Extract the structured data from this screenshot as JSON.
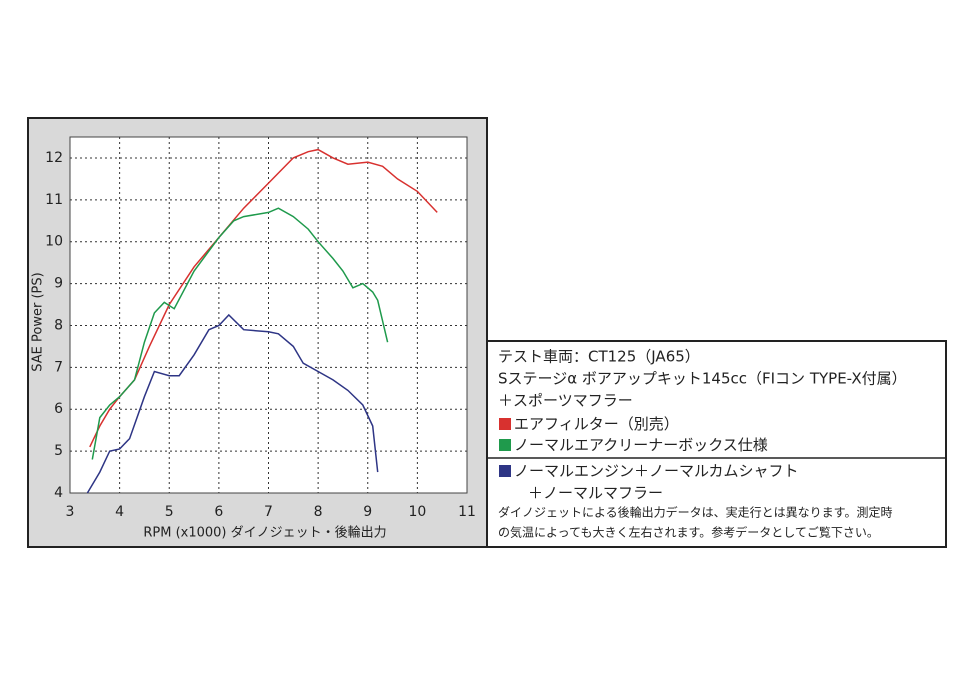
{
  "chart_data": {
    "type": "line",
    "xlabel": "RPM (x1000) ダイノジェット・後輪出力",
    "ylabel": "SAE Power (PS)",
    "xlim": [
      3,
      11
    ],
    "xticks": [
      3,
      4,
      5,
      6,
      7,
      8,
      9,
      10,
      11
    ],
    "ylim": [
      4,
      12.5
    ],
    "yticks": [
      4,
      5,
      6,
      7,
      8,
      9,
      10,
      11,
      12
    ],
    "grid": true,
    "legend_header": [
      "テスト車両：CT125（JA65）",
      "Sステージα ボアアップキット145cc（FIコン TYPE-X付属）",
      "＋スポーツマフラー"
    ],
    "note": [
      "ダイノジェットによる後輪出力データは、実走行とは異なります。測定時",
      "の気温によっても大きく左右されます。参考データとしてご覧下さい。"
    ],
    "series": [
      {
        "name": "エアフィルター（別売）",
        "color": "#d8312f",
        "x": [
          3.4,
          3.6,
          3.8,
          4.0,
          4.3,
          4.6,
          5.0,
          5.5,
          6.0,
          6.5,
          7.0,
          7.5,
          7.8,
          8.0,
          8.3,
          8.6,
          9.0,
          9.3,
          9.6,
          10.0,
          10.4
        ],
        "values": [
          5.1,
          5.6,
          6.0,
          6.3,
          6.7,
          7.5,
          8.5,
          9.4,
          10.1,
          10.8,
          11.4,
          12.0,
          12.15,
          12.2,
          12.0,
          11.85,
          11.9,
          11.8,
          11.5,
          11.2,
          10.7
        ]
      },
      {
        "name": "ノーマルエアクリーナーボックス仕様",
        "color": "#1f9a4c",
        "x": [
          3.45,
          3.6,
          3.8,
          4.0,
          4.3,
          4.5,
          4.7,
          4.9,
          5.1,
          5.5,
          6.0,
          6.3,
          6.5,
          7.0,
          7.2,
          7.5,
          7.8,
          8.0,
          8.3,
          8.5,
          8.7,
          8.9,
          9.1,
          9.2,
          9.4
        ],
        "values": [
          4.8,
          5.8,
          6.1,
          6.3,
          6.7,
          7.6,
          8.3,
          8.55,
          8.4,
          9.3,
          10.1,
          10.5,
          10.6,
          10.7,
          10.8,
          10.6,
          10.3,
          10.0,
          9.6,
          9.3,
          8.9,
          9.0,
          8.8,
          8.6,
          7.6
        ]
      },
      {
        "name": "ノーマルエンジン＋ノーマルカムシャフト\n＋ノーマルマフラー",
        "color": "#2e3585",
        "x": [
          3.35,
          3.6,
          3.8,
          4.0,
          4.2,
          4.5,
          4.7,
          5.0,
          5.2,
          5.5,
          5.8,
          6.0,
          6.2,
          6.5,
          7.0,
          7.2,
          7.5,
          7.7,
          8.0,
          8.3,
          8.6,
          8.9,
          9.1,
          9.2
        ],
        "values": [
          4.0,
          4.5,
          5.0,
          5.05,
          5.3,
          6.3,
          6.9,
          6.8,
          6.8,
          7.3,
          7.9,
          8.0,
          8.25,
          7.9,
          7.85,
          7.8,
          7.5,
          7.1,
          6.9,
          6.7,
          6.45,
          6.1,
          5.6,
          4.5
        ]
      }
    ]
  }
}
